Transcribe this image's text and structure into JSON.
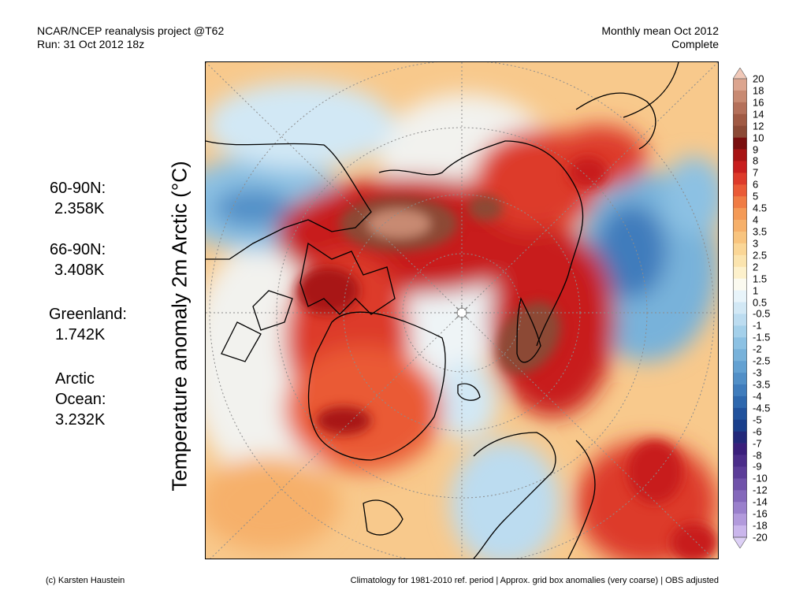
{
  "header": {
    "left_line1": "NCAR/NCEP reanalysis project @T62",
    "left_line2": "Run: 31 Oct 2012 18z",
    "right_line1": "Monthly mean Oct 2012",
    "right_line2": "Complete"
  },
  "ylabel": "Temperature anomaly 2m Arctic (°C)",
  "stats": [
    {
      "label": "60-90N:",
      "value": "2.358K"
    },
    {
      "label": "66-90N:",
      "value": "3.408K"
    },
    {
      "label": "Greenland:",
      "value": "1.742K"
    },
    {
      "label": "Arctic",
      "label2": "Ocean:",
      "value": "3.232K"
    }
  ],
  "colorbar": {
    "labels": [
      "20",
      "18",
      "16",
      "14",
      "12",
      "10",
      "9",
      "8",
      "7",
      "6",
      "5",
      "4.5",
      "4",
      "3.5",
      "3",
      "2.5",
      "2",
      "1.5",
      "1",
      "0.5",
      "-0.5",
      "-1",
      "-1.5",
      "-2",
      "-2.5",
      "-3",
      "-3.5",
      "-4",
      "-4.5",
      "-5",
      "-6",
      "-7",
      "-8",
      "-9",
      "-10",
      "-12",
      "-14",
      "-16",
      "-18",
      "-20"
    ],
    "colors": [
      "#f0c8b8",
      "#dca58f",
      "#c88a72",
      "#b4705a",
      "#a05a44",
      "#8c4a36",
      "#7a0f0f",
      "#a81414",
      "#c81e1e",
      "#dd3a2a",
      "#ea5a36",
      "#f07c44",
      "#f49a56",
      "#f6b06a",
      "#f8c47e",
      "#fad696",
      "#fbe4ae",
      "#fdf1cc",
      "#fbfaf0",
      "#e8f4fa",
      "#d2e8f5",
      "#bcdcf0",
      "#a4d0ea",
      "#8cc1e3",
      "#78b2da",
      "#63a1d2",
      "#518fc7",
      "#3f7cbc",
      "#2e68ae",
      "#21529d",
      "#1a3f8c",
      "#22287a",
      "#3a1f7c",
      "#4b2d8a",
      "#5c3d99",
      "#7052aa",
      "#8468bb",
      "#9a80cc",
      "#b29adc",
      "#cab6ec",
      "#ddd0f6"
    ]
  },
  "footer": {
    "left": "(c) Karsten Haustein",
    "right": "Climatology for 1981-2010 ref. period | Approx. grid box anomalies (very coarse) | OBS adjusted"
  },
  "map": {
    "description_colors": {
      "land_line": "#000000",
      "grid": "#8c8c8c"
    }
  }
}
